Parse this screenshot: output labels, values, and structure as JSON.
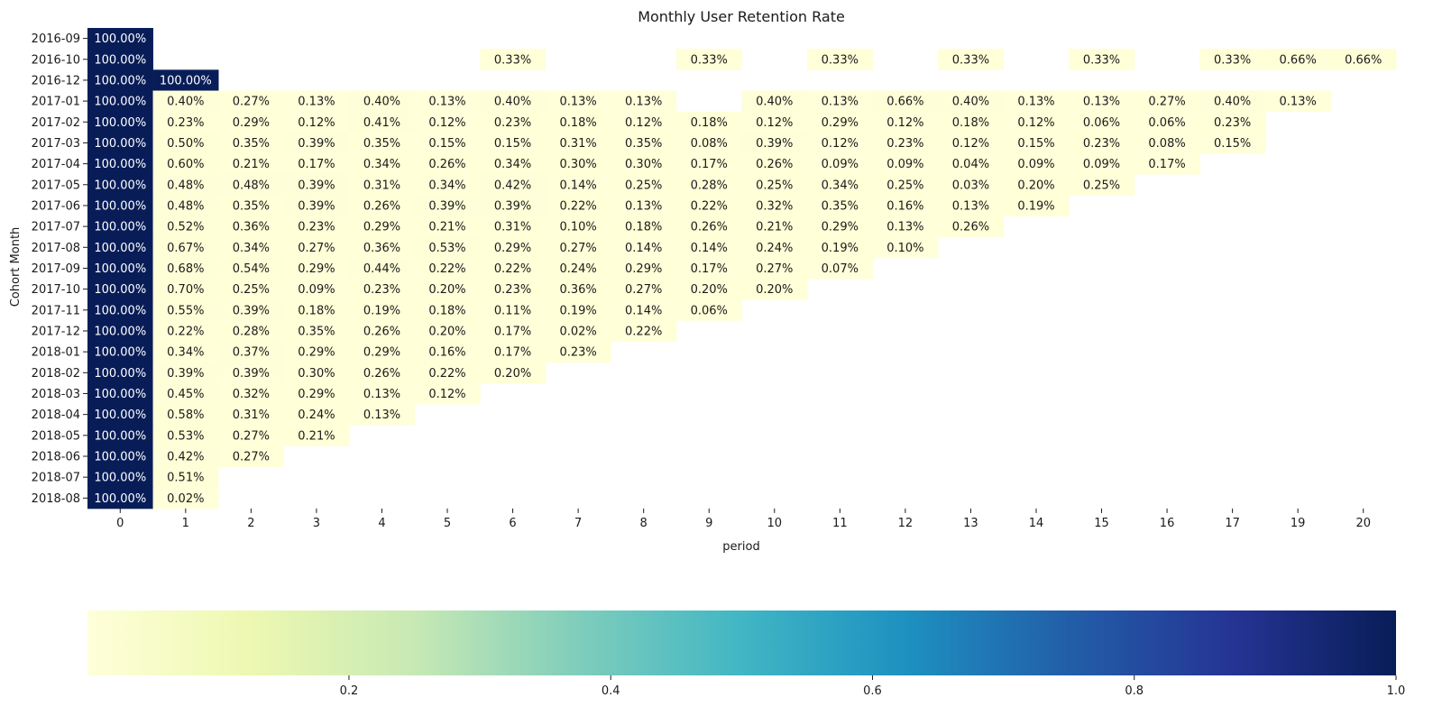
{
  "chart_data": {
    "type": "heatmap",
    "title": "Monthly User Retention Rate",
    "xlabel": "period",
    "ylabel": "Cohort Month",
    "x": [
      "0",
      "1",
      "2",
      "3",
      "4",
      "5",
      "6",
      "7",
      "8",
      "9",
      "10",
      "11",
      "12",
      "13",
      "14",
      "15",
      "16",
      "17",
      "19",
      "20"
    ],
    "y": [
      "2016-09",
      "2016-10",
      "2016-12",
      "2017-01",
      "2017-02",
      "2017-03",
      "2017-04",
      "2017-05",
      "2017-06",
      "2017-07",
      "2017-08",
      "2017-09",
      "2017-10",
      "2017-11",
      "2017-12",
      "2018-01",
      "2018-02",
      "2018-03",
      "2018-04",
      "2018-05",
      "2018-06",
      "2018-07",
      "2018-08"
    ],
    "values": [
      [
        1.0,
        null,
        null,
        null,
        null,
        null,
        null,
        null,
        null,
        null,
        null,
        null,
        null,
        null,
        null,
        null,
        null,
        null,
        null,
        null
      ],
      [
        1.0,
        null,
        null,
        null,
        null,
        null,
        0.0033,
        null,
        null,
        0.0033,
        null,
        0.0033,
        null,
        0.0033,
        null,
        0.0033,
        null,
        0.0033,
        0.0066,
        0.0066
      ],
      [
        1.0,
        1.0,
        null,
        null,
        null,
        null,
        null,
        null,
        null,
        null,
        null,
        null,
        null,
        null,
        null,
        null,
        null,
        null,
        null,
        null
      ],
      [
        1.0,
        0.004,
        0.0027,
        0.0013,
        0.004,
        0.0013,
        0.004,
        0.0013,
        0.0013,
        null,
        0.004,
        0.0013,
        0.0066,
        0.004,
        0.0013,
        0.0013,
        0.0027,
        0.004,
        0.0013,
        null
      ],
      [
        1.0,
        0.0023,
        0.0029,
        0.0012,
        0.0041,
        0.0012,
        0.0023,
        0.0018,
        0.0012,
        0.0018,
        0.0012,
        0.0029,
        0.0012,
        0.0018,
        0.0012,
        0.0006,
        0.0006,
        0.0023,
        null,
        null
      ],
      [
        1.0,
        0.005,
        0.0035,
        0.0039,
        0.0035,
        0.0015,
        0.0015,
        0.0031,
        0.0035,
        0.0008,
        0.0039,
        0.0012,
        0.0023,
        0.0012,
        0.0015,
        0.0023,
        0.0008,
        0.0015,
        null,
        null
      ],
      [
        1.0,
        0.006,
        0.0021,
        0.0017,
        0.0034,
        0.0026,
        0.0034,
        0.003,
        0.003,
        0.0017,
        0.0026,
        0.0009,
        0.0009,
        0.0004,
        0.0009,
        0.0009,
        0.0017,
        null,
        null,
        null
      ],
      [
        1.0,
        0.0048,
        0.0048,
        0.0039,
        0.0031,
        0.0034,
        0.0042,
        0.0014,
        0.0025,
        0.0028,
        0.0025,
        0.0034,
        0.0025,
        0.0003,
        0.002,
        0.0025,
        null,
        null,
        null,
        null
      ],
      [
        1.0,
        0.0048,
        0.0035,
        0.0039,
        0.0026,
        0.0039,
        0.0039,
        0.0022,
        0.0013,
        0.0022,
        0.0032,
        0.0035,
        0.0016,
        0.0013,
        0.0019,
        null,
        null,
        null,
        null,
        null
      ],
      [
        1.0,
        0.0052,
        0.0036,
        0.0023,
        0.0029,
        0.0021,
        0.0031,
        0.001,
        0.0018,
        0.0026,
        0.0021,
        0.0029,
        0.0013,
        0.0026,
        null,
        null,
        null,
        null,
        null,
        null
      ],
      [
        1.0,
        0.0067,
        0.0034,
        0.0027,
        0.0036,
        0.0053,
        0.0029,
        0.0027,
        0.0014,
        0.0014,
        0.0024,
        0.0019,
        0.001,
        null,
        null,
        null,
        null,
        null,
        null,
        null
      ],
      [
        1.0,
        0.0068,
        0.0054,
        0.0029,
        0.0044,
        0.0022,
        0.0022,
        0.0024,
        0.0029,
        0.0017,
        0.0027,
        0.0007,
        null,
        null,
        null,
        null,
        null,
        null,
        null,
        null
      ],
      [
        1.0,
        0.007,
        0.0025,
        0.0009,
        0.0023,
        0.002,
        0.0023,
        0.0036,
        0.0027,
        0.002,
        0.002,
        null,
        null,
        null,
        null,
        null,
        null,
        null,
        null,
        null
      ],
      [
        1.0,
        0.0055,
        0.0039,
        0.0018,
        0.0019,
        0.0018,
        0.0011,
        0.0019,
        0.0014,
        0.0006,
        null,
        null,
        null,
        null,
        null,
        null,
        null,
        null,
        null,
        null
      ],
      [
        1.0,
        0.0022,
        0.0028,
        0.0035,
        0.0026,
        0.002,
        0.0017,
        0.0002,
        0.0022,
        null,
        null,
        null,
        null,
        null,
        null,
        null,
        null,
        null,
        null,
        null
      ],
      [
        1.0,
        0.0034,
        0.0037,
        0.0029,
        0.0029,
        0.0016,
        0.0017,
        0.0023,
        null,
        null,
        null,
        null,
        null,
        null,
        null,
        null,
        null,
        null,
        null,
        null
      ],
      [
        1.0,
        0.0039,
        0.0039,
        0.003,
        0.0026,
        0.0022,
        0.002,
        null,
        null,
        null,
        null,
        null,
        null,
        null,
        null,
        null,
        null,
        null,
        null,
        null
      ],
      [
        1.0,
        0.0045,
        0.0032,
        0.0029,
        0.0013,
        0.0012,
        null,
        null,
        null,
        null,
        null,
        null,
        null,
        null,
        null,
        null,
        null,
        null,
        null,
        null
      ],
      [
        1.0,
        0.0058,
        0.0031,
        0.0024,
        0.0013,
        null,
        null,
        null,
        null,
        null,
        null,
        null,
        null,
        null,
        null,
        null,
        null,
        null,
        null,
        null
      ],
      [
        1.0,
        0.0053,
        0.0027,
        0.0021,
        null,
        null,
        null,
        null,
        null,
        null,
        null,
        null,
        null,
        null,
        null,
        null,
        null,
        null,
        null,
        null
      ],
      [
        1.0,
        0.0042,
        0.0027,
        null,
        null,
        null,
        null,
        null,
        null,
        null,
        null,
        null,
        null,
        null,
        null,
        null,
        null,
        null,
        null,
        null
      ],
      [
        1.0,
        0.0051,
        null,
        null,
        null,
        null,
        null,
        null,
        null,
        null,
        null,
        null,
        null,
        null,
        null,
        null,
        null,
        null,
        null,
        null
      ],
      [
        1.0,
        0.0002,
        null,
        null,
        null,
        null,
        null,
        null,
        null,
        null,
        null,
        null,
        null,
        null,
        null,
        null,
        null,
        null,
        null,
        null
      ]
    ],
    "colorbar": {
      "orientation": "horizontal",
      "placement": "bottom",
      "range": [
        0.0002,
        1.0
      ],
      "ticks": [
        "0.2",
        "0.4",
        "0.6",
        "0.8",
        "1.0"
      ],
      "colormap": [
        "#ffffd9",
        "#edf8b1",
        "#c7e9b4",
        "#7fcdbb",
        "#41b6c4",
        "#1d91c0",
        "#225ea8",
        "#253494",
        "#081d58"
      ]
    }
  }
}
